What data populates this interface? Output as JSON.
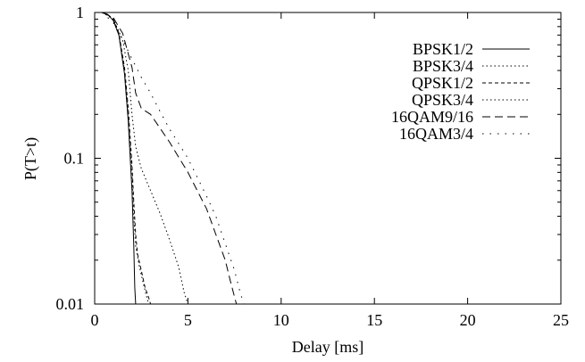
{
  "chart_data": {
    "type": "line",
    "xlabel": "Delay [ms]",
    "ylabel": "P(T>t)",
    "xlim": [
      0,
      25
    ],
    "ylim": [
      0.01,
      1
    ],
    "yscale": "log",
    "xticks": [
      0,
      5,
      10,
      15,
      20,
      25
    ],
    "yticks": [
      0.01,
      0.1,
      1
    ],
    "xtick_labels": [
      "0",
      "5",
      "10",
      "15",
      "20",
      "25"
    ],
    "ytick_labels": [
      "0.01",
      "0.1",
      "1"
    ],
    "grid": false,
    "legend_position": "top-right",
    "series": [
      {
        "name": "BPSK1/2",
        "dash": "solid",
        "x": [
          0.4,
          0.7,
          1.0,
          1.3,
          1.6,
          1.8,
          2.0,
          2.1,
          2.15,
          2.2
        ],
        "y": [
          1.0,
          0.97,
          0.88,
          0.7,
          0.38,
          0.18,
          0.06,
          0.025,
          0.013,
          0.01
        ]
      },
      {
        "name": "BPSK3/4",
        "dash": "dotted",
        "x": [
          0.4,
          0.7,
          1.0,
          1.3,
          1.6,
          1.8,
          2.0,
          2.1,
          2.2,
          2.4,
          2.6,
          2.8,
          2.9
        ],
        "y": [
          1.0,
          0.97,
          0.88,
          0.7,
          0.4,
          0.2,
          0.08,
          0.04,
          0.025,
          0.018,
          0.014,
          0.011,
          0.01
        ]
      },
      {
        "name": "QPSK1/2",
        "dash": "short-dash",
        "x": [
          0.4,
          0.7,
          1.0,
          1.3,
          1.6,
          1.8,
          2.0,
          2.1,
          2.2,
          2.3,
          2.5,
          2.7,
          2.9,
          3.0
        ],
        "y": [
          1.0,
          0.97,
          0.9,
          0.72,
          0.42,
          0.22,
          0.09,
          0.05,
          0.03,
          0.022,
          0.017,
          0.013,
          0.011,
          0.01
        ]
      },
      {
        "name": "QPSK3/4",
        "dash": "dotted",
        "x": [
          0.4,
          1.0,
          1.5,
          1.8,
          2.0,
          2.2,
          2.5,
          3.0,
          3.5,
          4.0,
          4.5,
          4.8,
          5.0
        ],
        "y": [
          1.0,
          0.9,
          0.65,
          0.4,
          0.2,
          0.12,
          0.085,
          0.06,
          0.042,
          0.028,
          0.018,
          0.012,
          0.01
        ]
      },
      {
        "name": "16QAM9/16",
        "dash": "long-dash",
        "x": [
          0.4,
          1.0,
          1.5,
          2.0,
          2.2,
          2.5,
          3.0,
          4.0,
          5.0,
          6.0,
          6.5,
          7.0,
          7.3,
          7.6
        ],
        "y": [
          1.0,
          0.92,
          0.72,
          0.42,
          0.28,
          0.22,
          0.2,
          0.13,
          0.08,
          0.045,
          0.03,
          0.02,
          0.014,
          0.01
        ]
      },
      {
        "name": "16QAM3/4",
        "dash": "sparse-dot",
        "x": [
          0.4,
          1.0,
          1.5,
          2.0,
          2.5,
          3.0,
          3.5,
          4.0,
          5.0,
          6.0,
          6.5,
          7.0,
          7.5,
          7.8,
          8.0
        ],
        "y": [
          1.0,
          0.85,
          0.65,
          0.48,
          0.36,
          0.28,
          0.21,
          0.16,
          0.1,
          0.055,
          0.04,
          0.026,
          0.017,
          0.012,
          0.01
        ]
      }
    ]
  }
}
